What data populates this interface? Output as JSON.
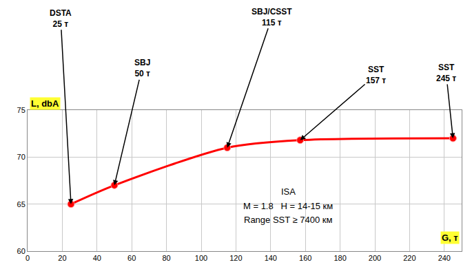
{
  "chart_data": {
    "type": "line",
    "x_label": "G, т",
    "y_label": "L, dbA",
    "x": [
      25,
      50,
      115,
      157,
      245
    ],
    "values": [
      65,
      67,
      71,
      71.8,
      72
    ],
    "point_labels": [
      "DSTA\n25 т",
      "SBJ\n50 т",
      "SBJ/CSST\n115 т",
      "SST\n157 т",
      "SST\n245 т"
    ],
    "annotations": [
      "ISA",
      "M = 1.8   H = 14-15 км",
      "Range SST ≥ 7400 км"
    ],
    "color": "#ff0000",
    "marker": "circle",
    "line_style": "solid",
    "xlim": [
      0,
      250
    ],
    "xticks": [
      0,
      20,
      40,
      60,
      80,
      100,
      120,
      140,
      160,
      180,
      200,
      220,
      240
    ],
    "ylim": [
      60,
      75
    ],
    "yticks": [
      60,
      65,
      70,
      75
    ],
    "grid": true
  }
}
